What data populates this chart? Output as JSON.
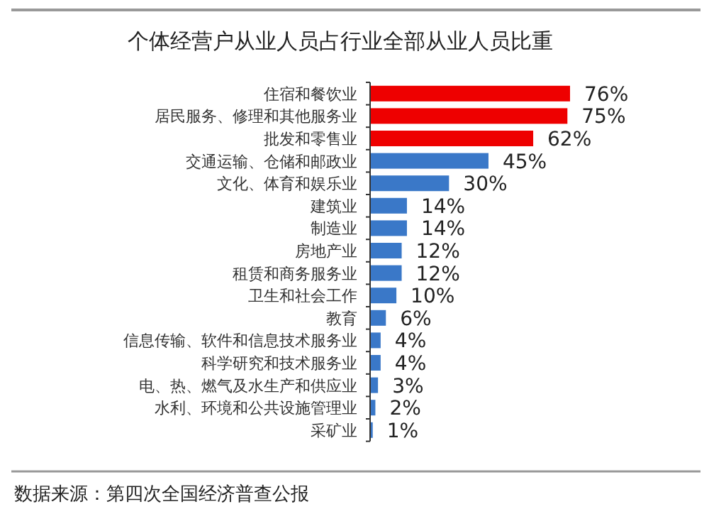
{
  "chart_data": {
    "type": "bar",
    "orientation": "horizontal",
    "title": "个体经营户从业人员占行业全部从业人员比重",
    "categories": [
      "住宿和餐饮业",
      "居民服务、修理和其他服务业",
      "批发和零售业",
      "交通运输、仓储和邮政业",
      "文化、体育和娱乐业",
      "建筑业",
      "制造业",
      "房地产业",
      "租赁和商务服务业",
      "卫生和社会工作",
      "教育",
      "信息传输、软件和信息技术服务业",
      "科学研究和技术服务业",
      "电、热、燃气及水生产和供应业",
      "水利、环境和公共设施管理业",
      "采矿业"
    ],
    "values": [
      76,
      75,
      62,
      45,
      30,
      14,
      14,
      12,
      12,
      10,
      6,
      4,
      4,
      3,
      2,
      1
    ],
    "value_labels": [
      "76%",
      "75%",
      "62%",
      "45%",
      "30%",
      "14%",
      "14%",
      "12%",
      "12%",
      "10%",
      "6%",
      "4%",
      "4%",
      "3%",
      "2%",
      "1%"
    ],
    "colors": [
      "#ee0000",
      "#ee0000",
      "#ee0000",
      "#3a78c8",
      "#3a78c8",
      "#3a78c8",
      "#3a78c8",
      "#3a78c8",
      "#3a78c8",
      "#3a78c8",
      "#3a78c8",
      "#3a78c8",
      "#3a78c8",
      "#3a78c8",
      "#3a78c8",
      "#3a78c8"
    ],
    "annotations": [
      "数据来源：第四次全国经济普查公报"
    ]
  }
}
